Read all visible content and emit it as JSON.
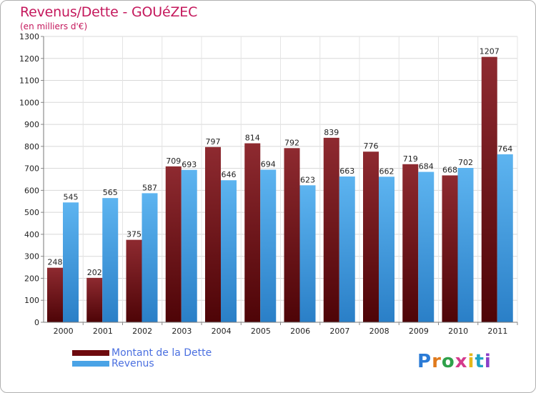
{
  "header": {
    "title": "Revenus/Dette - GOUéZEC",
    "subtitle": "(en milliers d'€)"
  },
  "chart_data": {
    "type": "bar",
    "title": "Revenus/Dette - GOUéZEC",
    "ylabel": "(en milliers d'€)",
    "xlabel": "",
    "ylim": [
      0,
      1300
    ],
    "yticks": [
      0,
      100,
      200,
      300,
      400,
      500,
      600,
      700,
      800,
      900,
      1000,
      1100,
      1200,
      1300
    ],
    "categories": [
      "2000",
      "2001",
      "2002",
      "2003",
      "2004",
      "2005",
      "2006",
      "2007",
      "2008",
      "2009",
      "2010",
      "2011"
    ],
    "series": [
      {
        "name": "Montant de la Dette",
        "color": "#7a0f12",
        "values": [
          248,
          202,
          375,
          709,
          797,
          814,
          792,
          839,
          776,
          719,
          668,
          1207
        ]
      },
      {
        "name": "Revenus",
        "color": "#4aa3e6",
        "values": [
          545,
          565,
          587,
          693,
          646,
          694,
          623,
          663,
          662,
          684,
          702,
          764
        ]
      }
    ],
    "grid": true,
    "legend_position": "bottom-left"
  },
  "logo": {
    "text": "Proxiti",
    "colors": [
      "#2b7bd6",
      "#e07a1c",
      "#2fa14a",
      "#d43a8c",
      "#e5b81a",
      "#1fa3c4",
      "#8a3fc9"
    ]
  }
}
